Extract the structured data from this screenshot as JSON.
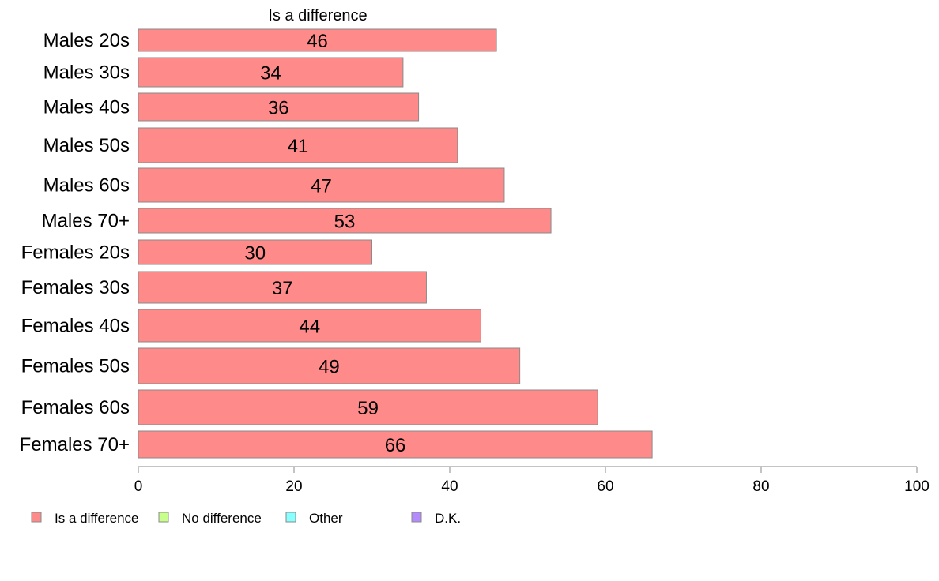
{
  "chart_data": {
    "type": "bar",
    "orientation": "horizontal",
    "categories": [
      "Males 20s",
      "Males 30s",
      "Males 40s",
      "Males 50s",
      "Males 60s",
      "Males 70+",
      "Females 20s",
      "Females 30s",
      "Females 40s",
      "Females 50s",
      "Females 60s",
      "Females 70+"
    ],
    "series": [
      {
        "name": "Is a difference",
        "color": "#ff8a8a",
        "values": [
          46,
          34,
          36,
          41,
          47,
          53,
          30,
          37,
          44,
          49,
          59,
          66
        ],
        "labels": [
          "46",
          "34",
          "36",
          "41",
          "47",
          "53",
          "30",
          "37",
          "44",
          "49",
          "59",
          "66"
        ]
      }
    ],
    "column_title": "Is a difference",
    "xlim": [
      0,
      100
    ],
    "xticks": [
      0,
      20,
      40,
      60,
      80,
      100
    ],
    "xtick_labels": [
      "0",
      "20",
      "40",
      "60",
      "80",
      "100"
    ],
    "grid": false,
    "legend": {
      "placement": "bottom-left",
      "entries": [
        {
          "label": "Is a difference",
          "color": "#ff8a8a"
        },
        {
          "label": "No difference",
          "color": "#c8ff8a"
        },
        {
          "label": "Other",
          "color": "#8affff"
        },
        {
          "label": "D.K.",
          "color": "#b48aff"
        }
      ]
    }
  }
}
